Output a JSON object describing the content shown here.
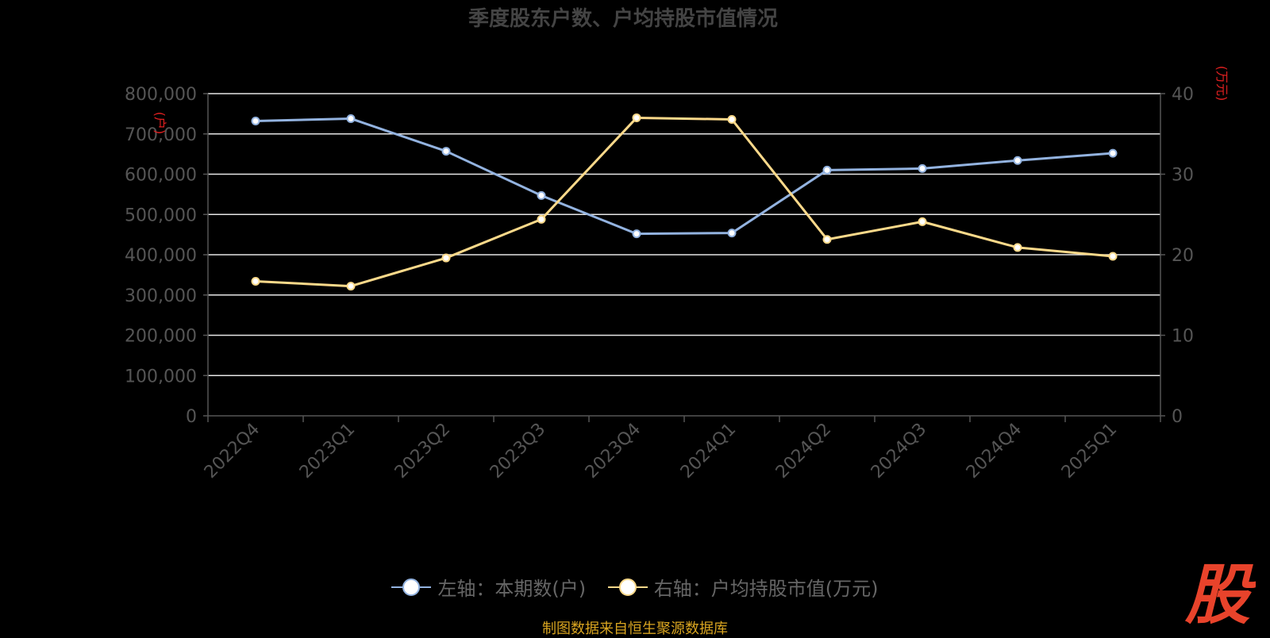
{
  "chart_data": {
    "type": "line",
    "title": "季度股东户数、户均持股市值情况",
    "categories": [
      "2022Q4",
      "2023Q1",
      "2023Q2",
      "2023Q3",
      "2023Q4",
      "2024Q1",
      "2024Q2",
      "2024Q3",
      "2024Q4",
      "2025Q1"
    ],
    "y_left": {
      "label": "(户)",
      "range": [
        0,
        800000
      ],
      "ticks": [
        "0",
        "100,000",
        "200,000",
        "300,000",
        "400,000",
        "500,000",
        "600,000",
        "700,000",
        "800,000"
      ]
    },
    "y_right": {
      "label": "(万元)",
      "range": [
        0,
        40
      ],
      "ticks": [
        "0",
        "10",
        "20",
        "30",
        "40"
      ]
    },
    "series": [
      {
        "name": "左轴：本期数(户)",
        "axis": "left",
        "color": "#93b3e0",
        "values": [
          732000,
          738000,
          657000,
          547000,
          452000,
          454000,
          610000,
          614000,
          634000,
          652000
        ]
      },
      {
        "name": "右轴：户均持股市值(万元)",
        "axis": "right",
        "color": "#fbd98a",
        "values": [
          16.7,
          16.1,
          19.6,
          24.4,
          37.0,
          36.8,
          21.9,
          24.1,
          20.9,
          19.8
        ]
      }
    ],
    "grid": true,
    "legend_position": "bottom"
  },
  "legend": {
    "left_series": "左轴：本期数(户)",
    "right_series": "右轴：户均持股市值(万元)"
  },
  "source": "制图数据来自恒生聚源数据库",
  "logo_text": "股"
}
